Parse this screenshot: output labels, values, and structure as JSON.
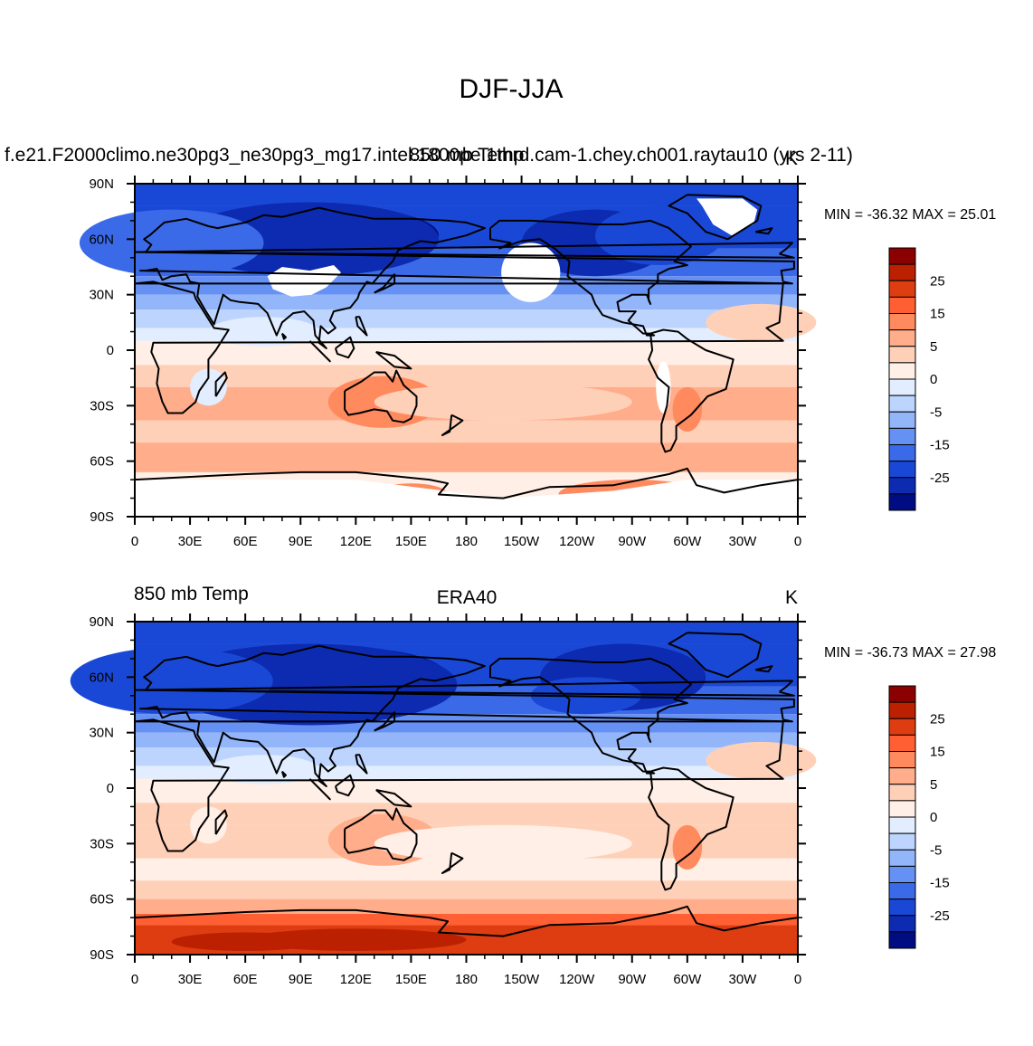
{
  "title": "DJF-JJA",
  "panels": [
    {
      "left_label": "f.e21.F2000climo.ne30pg3_ne30pg3_mg17.intel.1800pe.1thrd.cam-1.chey.ch001.raytau10 (yrs 2-11)",
      "center_label": "850 mb Temp",
      "right_label": "K",
      "stats": "MIN = -36.32 MAX =  25.01"
    },
    {
      "left_label": "850 mb Temp",
      "center_label": "ERA40",
      "right_label": "K",
      "stats": "MIN = -36.73 MAX =  27.98"
    }
  ],
  "axes": {
    "lon_ticks": [
      "0",
      "30E",
      "60E",
      "90E",
      "120E",
      "150E",
      "180",
      "150W",
      "120W",
      "90W",
      "60W",
      "30W",
      "0"
    ],
    "lat_ticks": [
      "90N",
      "60N",
      "30N",
      "0",
      "30S",
      "60S",
      "90S"
    ]
  },
  "colorbar": {
    "colors": [
      "#8b0000",
      "#bb2000",
      "#dd3d10",
      "#ff5f33",
      "#ff8a5e",
      "#ffad8a",
      "#ffd0b8",
      "#ffefe6",
      "#e2eeff",
      "#bcd4fe",
      "#93b6fb",
      "#6591f5",
      "#3b6ae9",
      "#1a48d6",
      "#0c2bb0",
      "#000d82"
    ],
    "labels": [
      "25",
      "15",
      "5",
      "0",
      "-5",
      "-15",
      "-25"
    ]
  },
  "chart_data": [
    {
      "type": "heatmap",
      "title": "DJF-JJA",
      "subtitle": "850 mb Temp",
      "xlabel": "",
      "ylabel": "",
      "units": "K",
      "xlim": [
        0,
        360
      ],
      "ylim": [
        -90,
        90
      ],
      "min": -36.32,
      "max": 25.01,
      "levels": [
        -30,
        -25,
        -20,
        -15,
        -10,
        -5,
        -2,
        0,
        2,
        5,
        10,
        15,
        20,
        25,
        30
      ],
      "approx_zonal_mean": {
        "lat": [
          90,
          75,
          60,
          45,
          30,
          15,
          0,
          -15,
          -30,
          -45,
          -60,
          -75
        ],
        "values": [
          -20,
          -24,
          -26,
          -22,
          -15,
          -5,
          2,
          5,
          6,
          7,
          6,
          8
        ]
      },
      "missing_data_regions": [
        "Tibetan Plateau",
        "Rocky Mountains",
        "Greenland",
        "Antarctica"
      ]
    },
    {
      "type": "heatmap",
      "title": "DJF-JJA",
      "subtitle": "ERA40",
      "xlabel": "",
      "ylabel": "",
      "units": "K",
      "xlim": [
        0,
        360
      ],
      "ylim": [
        -90,
        90
      ],
      "min": -36.73,
      "max": 27.98,
      "levels": [
        -30,
        -25,
        -20,
        -15,
        -10,
        -5,
        -2,
        0,
        2,
        5,
        10,
        15,
        20,
        25,
        30
      ],
      "approx_zonal_mean": {
        "lat": [
          90,
          75,
          60,
          45,
          30,
          15,
          0,
          -15,
          -30,
          -45,
          -60,
          -75
        ],
        "values": [
          -20,
          -24,
          -27,
          -23,
          -15,
          -5,
          1,
          5,
          6,
          6,
          7,
          20
        ]
      },
      "missing_data_regions": []
    }
  ]
}
